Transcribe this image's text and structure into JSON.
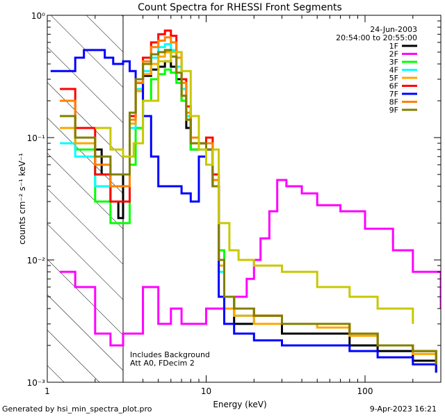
{
  "footer": {
    "generated": "Generated by hsi_min_spectra_plot.pro",
    "timestamp": "9-Apr-2023 16:21"
  },
  "chart_data": {
    "type": "line",
    "title": "Count Spectra for RHESSI Front Segments",
    "xlabel": "Energy (keV)",
    "ylabel": "counts cm⁻² s⁻¹ keV⁻¹",
    "x_scale": "log",
    "y_scale": "log",
    "xlim": [
      1,
      300
    ],
    "ylim": [
      0.001,
      1
    ],
    "x_ticks": [
      {
        "value": 1,
        "label": "1"
      },
      {
        "value": 10,
        "label": "10"
      },
      {
        "value": 100,
        "label": "100"
      }
    ],
    "y_ticks": [
      {
        "value": 1,
        "label": "10⁰"
      },
      {
        "value": 0.1,
        "label": "10⁻¹"
      },
      {
        "value": 0.01,
        "label": "10⁻²"
      },
      {
        "value": 0.001,
        "label": "10⁻³"
      }
    ],
    "date": "24-Jun-2003",
    "time_range": "20:54:00 to 20:55:00",
    "annotations": [
      "Includes Background",
      "Att A0, FDecim 2"
    ],
    "hatched_region": [
      1,
      3
    ],
    "legend_position": "top-right",
    "grid": false,
    "series": [
      {
        "name": "1F",
        "color": "#000000",
        "x": [
          2.0,
          2.2,
          2.5,
          2.8,
          3.0,
          3.3,
          3.6,
          4.0,
          4.5,
          5.0,
          5.5,
          6.0,
          6.5,
          7.0,
          7.5,
          8.0,
          9.0,
          10.0,
          11.0,
          12.0,
          13.0,
          15.0,
          20.0,
          30.0,
          50.0,
          80.0,
          120.0,
          200.0,
          280.0
        ],
        "y": [
          0.08,
          0.05,
          0.03,
          0.022,
          0.05,
          0.15,
          0.28,
          0.32,
          0.36,
          0.38,
          0.42,
          0.38,
          0.3,
          0.2,
          0.12,
          0.08,
          0.09,
          0.08,
          0.04,
          0.01,
          0.004,
          0.003,
          0.003,
          0.0025,
          0.0025,
          0.002,
          0.0018,
          0.0015,
          0.0012
        ]
      },
      {
        "name": "2F",
        "color": "#ff00ff",
        "x": [
          1.2,
          1.5,
          2.0,
          2.5,
          3.0,
          4.0,
          5.0,
          6.0,
          7.0,
          8.0,
          9.0,
          10.0,
          12.0,
          15.0,
          18.0,
          20.0,
          22.0,
          25.0,
          28.0,
          32.0,
          40.0,
          50.0,
          70.0,
          100.0,
          150.0,
          200.0,
          300.0
        ],
        "y": [
          0.008,
          0.006,
          0.0025,
          0.002,
          0.0025,
          0.006,
          0.003,
          0.004,
          0.003,
          0.003,
          0.003,
          0.004,
          0.004,
          0.005,
          0.007,
          0.01,
          0.015,
          0.025,
          0.045,
          0.04,
          0.035,
          0.028,
          0.025,
          0.018,
          0.012,
          0.008,
          0.004
        ]
      },
      {
        "name": "3F",
        "color": "#00ff00",
        "x": [
          1.2,
          1.5,
          2.0,
          2.5,
          3.0,
          3.3,
          3.6,
          4.0,
          4.5,
          5.0,
          5.5,
          6.0,
          6.5,
          7.0,
          7.5,
          8.0,
          9.0,
          10.0,
          11.0,
          12.0,
          13.0,
          15.0,
          20.0,
          30.0,
          50.0,
          80.0,
          120.0,
          200.0,
          280.0
        ],
        "y": [
          0.15,
          0.08,
          0.03,
          0.02,
          0.02,
          0.06,
          0.12,
          0.2,
          0.3,
          0.33,
          0.36,
          0.34,
          0.28,
          0.2,
          0.14,
          0.08,
          0.08,
          0.1,
          0.05,
          0.012,
          0.005,
          0.004,
          0.0035,
          0.003,
          0.003,
          0.0025,
          0.002,
          0.0018,
          0.0014
        ]
      },
      {
        "name": "4F",
        "color": "#00ffff",
        "x": [
          1.2,
          1.5,
          2.0,
          2.5,
          3.0,
          3.3,
          3.6,
          4.0,
          4.5,
          5.0,
          5.5,
          6.0,
          6.5,
          7.0,
          7.5,
          8.0,
          9.0,
          10.0,
          11.0,
          12.0,
          13.0,
          15.0,
          20.0,
          30.0,
          50.0,
          80.0,
          120.0,
          200.0,
          280.0
        ],
        "y": [
          0.09,
          0.07,
          0.04,
          0.03,
          0.03,
          0.12,
          0.25,
          0.35,
          0.45,
          0.55,
          0.58,
          0.52,
          0.38,
          0.25,
          0.15,
          0.1,
          0.09,
          0.08,
          0.04,
          0.008,
          0.004,
          0.0035,
          0.003,
          0.003,
          0.003,
          0.0025,
          0.002,
          0.0018,
          0.0014
        ]
      },
      {
        "name": "5F",
        "color": "#ffa500",
        "x": [
          1.2,
          1.5,
          2.0,
          2.5,
          3.0,
          3.3,
          3.6,
          4.0,
          4.5,
          5.0,
          5.5,
          6.0,
          6.5,
          7.0,
          7.5,
          8.0,
          9.0,
          10.0,
          11.0,
          12.0,
          13.0,
          15.0,
          20.0,
          30.0,
          50.0,
          80.0,
          120.0,
          200.0,
          280.0
        ],
        "y": [
          0.12,
          0.09,
          0.06,
          0.04,
          0.04,
          0.13,
          0.24,
          0.33,
          0.4,
          0.46,
          0.5,
          0.46,
          0.34,
          0.22,
          0.14,
          0.09,
          0.09,
          0.08,
          0.04,
          0.009,
          0.004,
          0.0035,
          0.003,
          0.003,
          0.0028,
          0.0024,
          0.002,
          0.0017,
          0.0013
        ]
      },
      {
        "name": "6F",
        "color": "#ff0000",
        "x": [
          1.2,
          1.5,
          2.0,
          2.5,
          3.0,
          3.3,
          3.6,
          4.0,
          4.5,
          5.0,
          5.5,
          6.0,
          6.5,
          7.0,
          7.5,
          8.0,
          9.0,
          10.0,
          11.0,
          12.0,
          13.0,
          15.0,
          20.0,
          30.0,
          50.0,
          80.0,
          120.0,
          200.0,
          280.0
        ],
        "y": [
          0.25,
          0.12,
          0.05,
          0.03,
          0.03,
          0.15,
          0.3,
          0.45,
          0.6,
          0.7,
          0.75,
          0.68,
          0.5,
          0.3,
          0.18,
          0.1,
          0.09,
          0.1,
          0.05,
          0.01,
          0.005,
          0.004,
          0.0035,
          0.003,
          0.003,
          0.0025,
          0.002,
          0.0018,
          0.0014
        ]
      },
      {
        "name": "7F",
        "color": "#0000ff",
        "x": [
          1.05,
          1.2,
          1.5,
          1.7,
          2.0,
          2.3,
          2.6,
          3.0,
          3.3,
          3.6,
          4.0,
          4.5,
          5.0,
          6.0,
          7.0,
          8.0,
          9.0,
          10.0,
          11.0,
          12.0,
          13.0,
          15.0,
          20.0,
          30.0,
          50.0,
          80.0,
          120.0,
          200.0,
          280.0
        ],
        "y": [
          0.35,
          0.35,
          0.45,
          0.52,
          0.52,
          0.45,
          0.4,
          0.42,
          0.35,
          0.28,
          0.15,
          0.07,
          0.04,
          0.04,
          0.035,
          0.03,
          0.07,
          0.08,
          0.04,
          0.005,
          0.003,
          0.0025,
          0.0022,
          0.002,
          0.002,
          0.0018,
          0.0016,
          0.0014,
          0.0012
        ]
      },
      {
        "name": "8F",
        "color": "#ff8000",
        "x": [
          1.2,
          1.5,
          2.0,
          2.5,
          3.0,
          3.3,
          3.6,
          4.0,
          4.5,
          5.0,
          5.5,
          6.0,
          6.5,
          7.0,
          7.5,
          8.0,
          9.0,
          10.0,
          11.0,
          12.0,
          13.0,
          15.0,
          20.0,
          30.0,
          50.0,
          80.0,
          120.0,
          200.0,
          280.0
        ],
        "y": [
          0.2,
          0.1,
          0.06,
          0.04,
          0.04,
          0.14,
          0.28,
          0.42,
          0.55,
          0.62,
          0.66,
          0.6,
          0.45,
          0.28,
          0.16,
          0.1,
          0.09,
          0.09,
          0.045,
          0.01,
          0.005,
          0.004,
          0.0035,
          0.003,
          0.003,
          0.0025,
          0.002,
          0.0018,
          0.0014
        ]
      },
      {
        "name": "9F",
        "color": "#808000",
        "x": [
          1.2,
          1.5,
          2.0,
          2.5,
          3.0,
          3.3,
          3.6,
          4.0,
          4.5,
          5.0,
          5.5,
          6.0,
          6.5,
          7.0,
          7.5,
          8.0,
          9.0,
          10.0,
          11.0,
          12.0,
          13.0,
          15.0,
          20.0,
          30.0,
          50.0,
          80.0,
          120.0,
          200.0,
          280.0
        ],
        "y": [
          0.15,
          0.1,
          0.07,
          0.05,
          0.05,
          0.16,
          0.3,
          0.4,
          0.48,
          0.5,
          0.52,
          0.46,
          0.34,
          0.22,
          0.14,
          0.09,
          0.09,
          0.08,
          0.04,
          0.01,
          0.005,
          0.004,
          0.0035,
          0.003,
          0.003,
          0.0025,
          0.002,
          0.0018,
          0.0014
        ]
      },
      {
        "name": "",
        "color": "#c8c800",
        "x": [
          2.0,
          2.5,
          3.0,
          3.5,
          4.0,
          5.0,
          6.0,
          7.0,
          8.0,
          9.0,
          10.0,
          11.0,
          12.0,
          14.0,
          16.0,
          20.0,
          30.0,
          50.0,
          80.0,
          120.0,
          200.0
        ],
        "y": [
          0.12,
          0.08,
          0.07,
          0.09,
          0.2,
          0.42,
          0.5,
          0.35,
          0.15,
          0.08,
          0.06,
          0.08,
          0.02,
          0.012,
          0.01,
          0.009,
          0.008,
          0.006,
          0.005,
          0.004,
          0.003
        ]
      }
    ]
  }
}
